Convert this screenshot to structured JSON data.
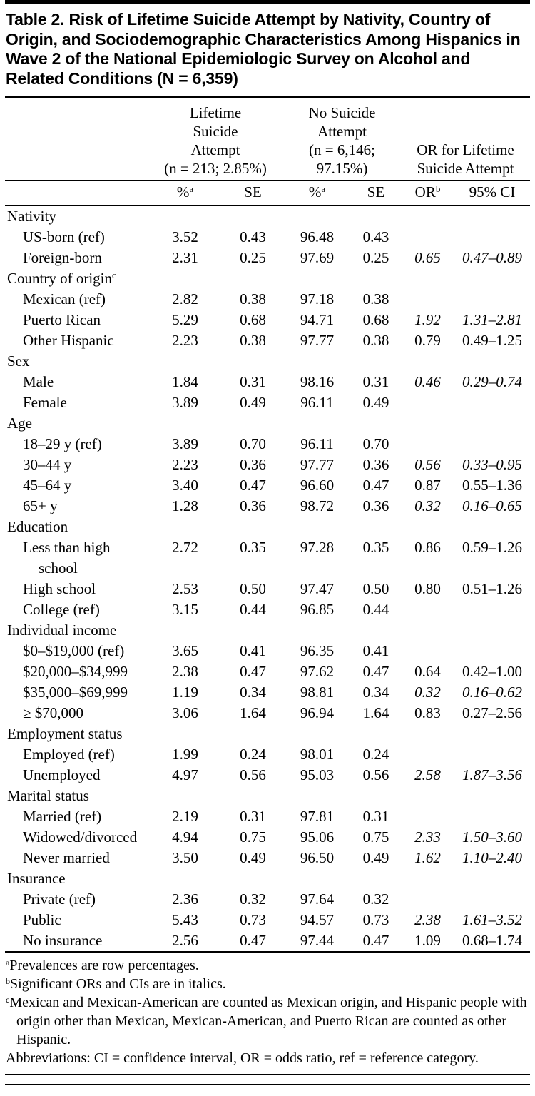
{
  "title": "Table 2. Risk of Lifetime Suicide Attempt by Nativity, Country of Origin, and Sociodemographic Characteristics Among Hispanics in Wave 2 of the National Epidemiologic Survey on Alcohol and Related Conditions (N = 6,359)",
  "header": {
    "groups": [
      {
        "name": "lifetime-suicide-attempt",
        "lines": [
          "Lifetime",
          "Suicide",
          "Attempt",
          "(n = 213; 2.85%)"
        ]
      },
      {
        "name": "no-suicide-attempt",
        "lines": [
          "No Suicide",
          "Attempt",
          "(n = 6,146;",
          "97.15%)"
        ]
      },
      {
        "name": "or-for-lifetime-suicide-attempt",
        "lines": [
          "OR for Lifetime",
          "Suicide Attempt"
        ]
      }
    ],
    "sub": [
      {
        "label": "%",
        "sup": "a"
      },
      {
        "label": "SE",
        "sup": ""
      },
      {
        "label": "%",
        "sup": "a"
      },
      {
        "label": "SE",
        "sup": ""
      },
      {
        "label": "OR",
        "sup": "b"
      },
      {
        "label": "95% CI",
        "sup": ""
      }
    ]
  },
  "rows": [
    {
      "type": "section",
      "label": "Nativity",
      "sup": ""
    },
    {
      "type": "data",
      "label": "US-born (ref)",
      "values": [
        "3.52",
        "0.43",
        "96.48",
        "0.43",
        "",
        ""
      ],
      "sig": false
    },
    {
      "type": "data",
      "label": "Foreign-born",
      "values": [
        "2.31",
        "0.25",
        "97.69",
        "0.25",
        "0.65",
        "0.47–0.89"
      ],
      "sig": true
    },
    {
      "type": "section",
      "label": "Country of origin",
      "sup": "c"
    },
    {
      "type": "data",
      "label": "Mexican (ref)",
      "values": [
        "2.82",
        "0.38",
        "97.18",
        "0.38",
        "",
        ""
      ],
      "sig": false
    },
    {
      "type": "data",
      "label": "Puerto Rican",
      "values": [
        "5.29",
        "0.68",
        "94.71",
        "0.68",
        "1.92",
        "1.31–2.81"
      ],
      "sig": true
    },
    {
      "type": "data",
      "label": "Other Hispanic",
      "values": [
        "2.23",
        "0.38",
        "97.77",
        "0.38",
        "0.79",
        "0.49–1.25"
      ],
      "sig": false
    },
    {
      "type": "section",
      "label": "Sex",
      "sup": ""
    },
    {
      "type": "data",
      "label": "Male",
      "values": [
        "1.84",
        "0.31",
        "98.16",
        "0.31",
        "0.46",
        "0.29–0.74"
      ],
      "sig": true
    },
    {
      "type": "data",
      "label": "Female",
      "values": [
        "3.89",
        "0.49",
        "96.11",
        "0.49",
        "",
        ""
      ],
      "sig": false
    },
    {
      "type": "section",
      "label": "Age",
      "sup": ""
    },
    {
      "type": "data",
      "label": "18–29 y (ref)",
      "values": [
        "3.89",
        "0.70",
        "96.11",
        "0.70",
        "",
        ""
      ],
      "sig": false
    },
    {
      "type": "data",
      "label": "30–44 y",
      "values": [
        "2.23",
        "0.36",
        "97.77",
        "0.36",
        "0.56",
        "0.33–0.95"
      ],
      "sig": true
    },
    {
      "type": "data",
      "label": "45–64 y",
      "values": [
        "3.40",
        "0.47",
        "96.60",
        "0.47",
        "0.87",
        "0.55–1.36"
      ],
      "sig": false
    },
    {
      "type": "data",
      "label": "65+ y",
      "values": [
        "1.28",
        "0.36",
        "98.72",
        "0.36",
        "0.32",
        "0.16–0.65"
      ],
      "sig": true
    },
    {
      "type": "section",
      "label": "Education",
      "sup": ""
    },
    {
      "type": "data",
      "label": "Less than high school",
      "values": [
        "2.72",
        "0.35",
        "97.28",
        "0.35",
        "0.86",
        "0.59–1.26"
      ],
      "sig": false
    },
    {
      "type": "data",
      "label": "High school",
      "values": [
        "2.53",
        "0.50",
        "97.47",
        "0.50",
        "0.80",
        "0.51–1.26"
      ],
      "sig": false
    },
    {
      "type": "data",
      "label": "College (ref)",
      "values": [
        "3.15",
        "0.44",
        "96.85",
        "0.44",
        "",
        ""
      ],
      "sig": false
    },
    {
      "type": "section",
      "label": "Individual income",
      "sup": ""
    },
    {
      "type": "data",
      "label": "$0–$19,000 (ref)",
      "values": [
        "3.65",
        "0.41",
        "96.35",
        "0.41",
        "",
        ""
      ],
      "sig": false
    },
    {
      "type": "data",
      "label": "$20,000–$34,999",
      "values": [
        "2.38",
        "0.47",
        "97.62",
        "0.47",
        "0.64",
        "0.42–1.00"
      ],
      "sig": false
    },
    {
      "type": "data",
      "label": "$35,000–$69,999",
      "values": [
        "1.19",
        "0.34",
        "98.81",
        "0.34",
        "0.32",
        "0.16–0.62"
      ],
      "sig": true
    },
    {
      "type": "data",
      "label": "≥ $70,000",
      "values": [
        "3.06",
        "1.64",
        "96.94",
        "1.64",
        "0.83",
        "0.27–2.56"
      ],
      "sig": false
    },
    {
      "type": "section",
      "label": "Employment status",
      "sup": ""
    },
    {
      "type": "data",
      "label": "Employed (ref)",
      "values": [
        "1.99",
        "0.24",
        "98.01",
        "0.24",
        "",
        ""
      ],
      "sig": false
    },
    {
      "type": "data",
      "label": "Unemployed",
      "values": [
        "4.97",
        "0.56",
        "95.03",
        "0.56",
        "2.58",
        "1.87–3.56"
      ],
      "sig": true
    },
    {
      "type": "section",
      "label": "Marital status",
      "sup": ""
    },
    {
      "type": "data",
      "label": "Married (ref)",
      "values": [
        "2.19",
        "0.31",
        "97.81",
        "0.31",
        "",
        ""
      ],
      "sig": false
    },
    {
      "type": "data",
      "label": "Widowed/divorced",
      "values": [
        "4.94",
        "0.75",
        "95.06",
        "0.75",
        "2.33",
        "1.50–3.60"
      ],
      "sig": true
    },
    {
      "type": "data",
      "label": "Never married",
      "values": [
        "3.50",
        "0.49",
        "96.50",
        "0.49",
        "1.62",
        "1.10–2.40"
      ],
      "sig": true
    },
    {
      "type": "section",
      "label": "Insurance",
      "sup": ""
    },
    {
      "type": "data",
      "label": "Private (ref)",
      "values": [
        "2.36",
        "0.32",
        "97.64",
        "0.32",
        "",
        ""
      ],
      "sig": false
    },
    {
      "type": "data",
      "label": "Public",
      "values": [
        "5.43",
        "0.73",
        "94.57",
        "0.73",
        "2.38",
        "1.61–3.52"
      ],
      "sig": true
    },
    {
      "type": "data",
      "label": "No insurance",
      "values": [
        "2.56",
        "0.47",
        "97.44",
        "0.47",
        "1.09",
        "0.68–1.74"
      ],
      "sig": false
    }
  ],
  "footnotes": [
    {
      "sup": "a",
      "text": "Prevalences are row percentages."
    },
    {
      "sup": "b",
      "text": "Significant ORs and CIs are in italics."
    },
    {
      "sup": "c",
      "text": "Mexican and Mexican-American are counted as Mexican origin, and Hispanic people with origin other than Mexican, Mexican-American, and Puerto Rican are counted as other Hispanic."
    },
    {
      "sup": "",
      "text": "Abbreviations: CI = confidence interval, OR = odds ratio, ref = reference category."
    }
  ]
}
